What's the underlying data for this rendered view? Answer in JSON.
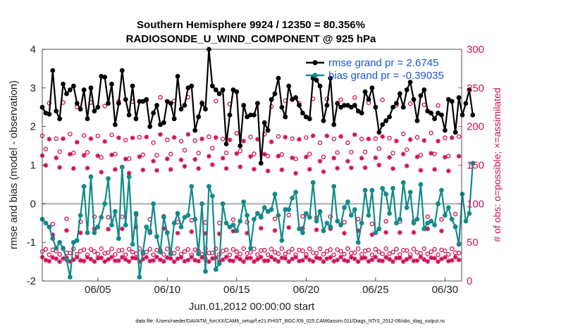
{
  "chart_data": {
    "type": "line",
    "title_line1": "Southern Hemisphere 9924 / 12350 = 80.356%",
    "title_line2": "RADIOSONDE_U_WIND_COMPONENT @ 925 hPa",
    "xlabel": "Jun.01,2012 00:00:00 start",
    "ylabel": "rmse and bias (model - observation)",
    "ylabel_right": "# of obs: o=possible; ×=assimilated",
    "xlim": [
      1,
      31.2
    ],
    "ylim": [
      -2,
      4
    ],
    "ylim_right": [
      0,
      300
    ],
    "x_ticks": [
      5,
      10,
      15,
      20,
      25,
      30
    ],
    "x_tick_labels": [
      "06/05",
      "06/10",
      "06/15",
      "06/20",
      "06/25",
      "06/30"
    ],
    "y_ticks": [
      -2,
      -1,
      0,
      1,
      2,
      3,
      4
    ],
    "y_tick_labels": [
      "-2",
      "-1",
      "0",
      "1",
      "2",
      "3",
      "4"
    ],
    "y_right_ticks": [
      0,
      50,
      100,
      150,
      200,
      250,
      300
    ],
    "y_right_tick_labels": [
      "0",
      "50",
      "100",
      "150",
      "200",
      "250",
      "300"
    ],
    "legend": [
      "rmse grand pr = 2.6745",
      "bias grand pr = -0.39035"
    ],
    "footer": "data file: /Users/raeder/DAI/ATM_forcXX/CAM6_setup/f.e21.FHIST_BGC.f09_025.CAM6assim.011/Diags_NTrS_2012-06/obs_diag_output.nc",
    "colors": {
      "rmse": "#000000",
      "bias": "#138a8a",
      "obs": "#cc1155",
      "zero": "#aaaaaa"
    },
    "series": [
      {
        "name": "rmse",
        "values": [
          2.5,
          2.35,
          2.32,
          3.45,
          2.4,
          2.2,
          3.1,
          2.85,
          2.95,
          3.05,
          2.6,
          2.45,
          2.95,
          2.2,
          3.0,
          2.4,
          2.5,
          3.3,
          3.28,
          2.6,
          3.1,
          2.05,
          2.6,
          3.45,
          2.7,
          2.3,
          3.05,
          2.2,
          2.65,
          2.65,
          2.7,
          2.0,
          2.35,
          2.55,
          2.05,
          2.1,
          2.65,
          2.6,
          2.2,
          3.3,
          2.45,
          2.55,
          3.0,
          3.05,
          1.9,
          2.25,
          2.6,
          2.45,
          4.0,
          3.05,
          2.95,
          2.85,
          2.95,
          1.55,
          2.3,
          2.95,
          2.9,
          1.5,
          2.55,
          2.25,
          2.3,
          2.3,
          2.6,
          1.05,
          2.1,
          1.9,
          2.7,
          2.85,
          3.25,
          2.5,
          2.25,
          3.05,
          2.7,
          2.75,
          2.55,
          2.35,
          2.25,
          2.2,
          3.25,
          3.2,
          3.05,
          2.15,
          2.55,
          3.25,
          2.05,
          2.6,
          2.5,
          2.55,
          2.55,
          2.5,
          2.55,
          2.4,
          2.35,
          2.9,
          2.7,
          3.0,
          2.5,
          1.85,
          2.05,
          2.15,
          2.25,
          2.5,
          2.6,
          2.85,
          2.5,
          2.95,
          3.15,
          2.7,
          2.15,
          2.8,
          2.95,
          2.4,
          2.35,
          2.2,
          2.35,
          2.3,
          1.9,
          2.7,
          2.65,
          1.85,
          2.75,
          2.3,
          2.6,
          2.95,
          2.3
        ]
      },
      {
        "name": "bias",
        "values": [
          -0.4,
          -0.5,
          -0.6,
          -0.9,
          -1.15,
          -1.0,
          -1.15,
          -1.45,
          -1.9,
          -1.0,
          -0.95,
          -0.3,
          0.45,
          -0.75,
          0.7,
          -0.75,
          -0.6,
          -0.35,
          0.0,
          0.65,
          -0.55,
          -0.2,
          -0.9,
          0.95,
          -0.55,
          0.7,
          -1.05,
          -0.25,
          -1.9,
          -1.25,
          -0.6,
          -0.75,
          0.0,
          -0.85,
          -1.25,
          -0.35,
          -0.75,
          -1.3,
          -0.5,
          -0.25,
          -0.6,
          -0.35,
          -0.3,
          0.45,
          -0.4,
          -1.3,
          0.0,
          -1.75,
          0.45,
          0.2,
          -1.7,
          -1.55,
          0.0,
          -0.5,
          -0.6,
          -0.55,
          -0.7,
          -0.45,
          0.05,
          -0.3,
          -1.15,
          -0.4,
          -0.25,
          -0.35,
          -0.1,
          -0.2,
          -0.15,
          0.25,
          -0.3,
          -0.95,
          -0.15,
          -0.15,
          0.15,
          0.3,
          -0.65,
          -0.75,
          -0.25,
          -0.35,
          0.55,
          -0.45,
          -0.2,
          -0.7,
          -0.5,
          -0.6,
          0.45,
          -0.45,
          -0.55,
          -0.1,
          0.05,
          -0.3,
          -0.15,
          -1.0,
          -0.5,
          0.35,
          -0.3,
          0.35,
          -0.75,
          -0.65,
          0.4,
          0.25,
          -0.25,
          0.4,
          -0.5,
          -0.4,
          0.55,
          -0.1,
          0.3,
          -0.5,
          -0.4,
          0.5,
          -0.65,
          -0.5,
          -0.45,
          -0.55,
          0.0,
          0.35,
          -0.3,
          -0.1,
          -0.4,
          -0.6,
          -1.05,
          0.25,
          -0.45,
          -0.25,
          1.05
        ]
      }
    ]
  }
}
